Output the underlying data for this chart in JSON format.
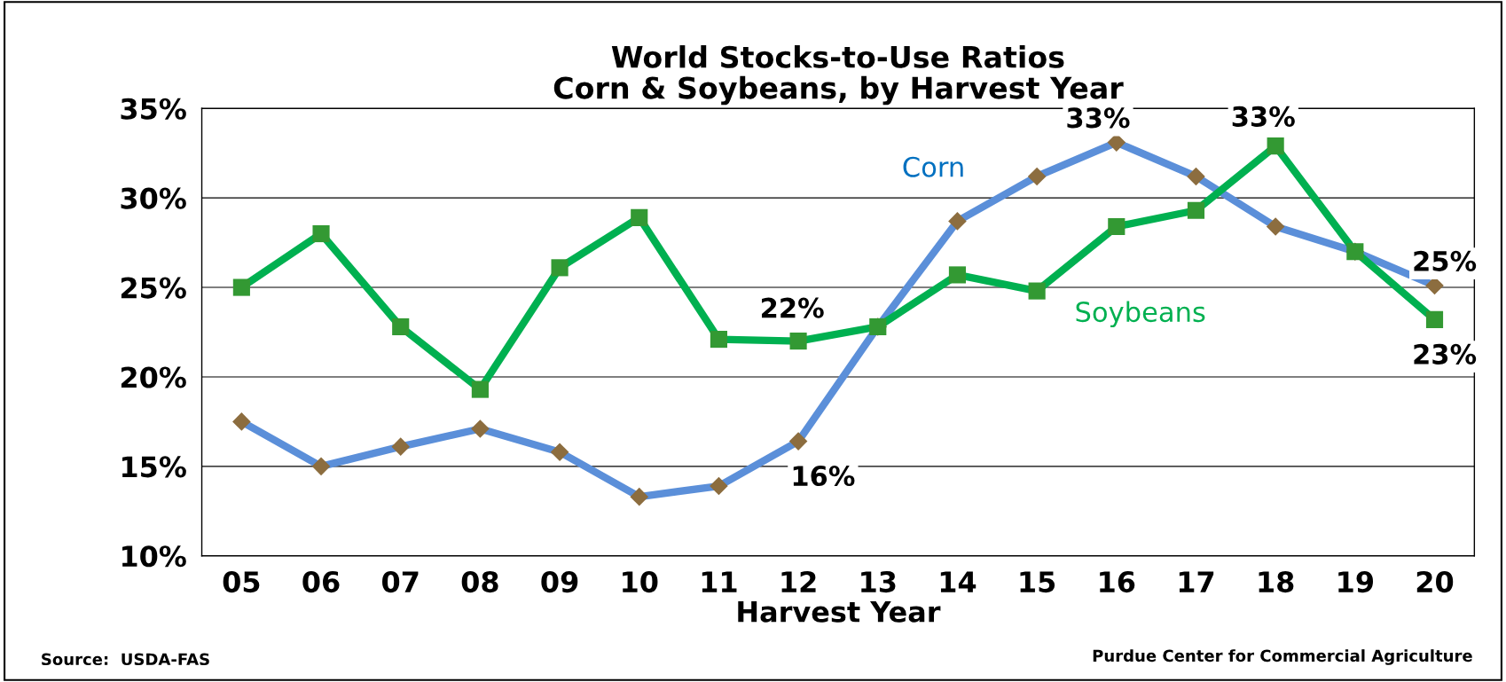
{
  "chart_data": {
    "type": "line",
    "title": "World Stocks-to-Use Ratios\nCorn & Soybeans, by Harvest Year",
    "xlabel": "Harvest Year",
    "categories": [
      "05",
      "06",
      "07",
      "08",
      "09",
      "10",
      "11",
      "12",
      "13",
      "14",
      "15",
      "16",
      "17",
      "18",
      "19",
      "20"
    ],
    "series": [
      {
        "name": "Corn",
        "color": "#5b8fd9",
        "marker": "diamond",
        "colors": [
          "#8c6d3f",
          "#8c6d3f",
          "#8c6d3f",
          "#8c6d3f",
          "#8c6d3f",
          "#8c6d3f",
          "#8c6d3f",
          "#8c6d3f",
          "#8c6d3f",
          "#8c6d3f",
          "#8c6d3f",
          "#8c6d3f",
          "#8c6d3f",
          "#8c6d3f",
          "#8c6d3f",
          "#8c6d3f"
        ],
        "values": [
          17.5,
          15.0,
          16.1,
          17.1,
          15.8,
          13.3,
          13.9,
          16.4,
          22.8,
          28.7,
          31.2,
          33.1,
          31.2,
          28.4,
          27.0,
          25.1
        ],
        "value_labels": [
          null,
          null,
          null,
          null,
          null,
          null,
          null,
          "16%",
          null,
          null,
          null,
          "33%",
          null,
          null,
          null,
          "25%"
        ]
      },
      {
        "name": "Soybeans",
        "color": "#00b050",
        "marker": "square",
        "colors": [
          "#339933",
          "#339933",
          "#339933",
          "#339933",
          "#339933",
          "#339933",
          "#339933",
          "#339933",
          "#339933",
          "#339933",
          "#339933",
          "#339933",
          "#339933",
          "#339933",
          "#339933",
          "#339933"
        ],
        "values": [
          25.0,
          28.0,
          22.8,
          19.3,
          26.1,
          28.9,
          22.1,
          22.0,
          22.8,
          25.7,
          24.8,
          28.4,
          29.3,
          32.9,
          27.0,
          23.2
        ],
        "value_labels": [
          null,
          null,
          null,
          null,
          null,
          null,
          null,
          "22%",
          null,
          null,
          null,
          null,
          null,
          "33%",
          null,
          "23%"
        ]
      }
    ],
    "ylim": [
      10,
      35
    ],
    "yticks": [
      {
        "value": 10,
        "label": "10%"
      },
      {
        "value": 15,
        "label": "15%"
      },
      {
        "value": 20,
        "label": "20%"
      },
      {
        "value": 25,
        "label": "25%"
      },
      {
        "value": 30,
        "label": "30%"
      },
      {
        "value": 35,
        "label": "35%"
      }
    ],
    "grid": "y",
    "legend": false,
    "line_style": "solid",
    "annotations": [
      "Source:  USDA-FAS",
      "Purdue Center for Commercial Agriculture"
    ]
  }
}
